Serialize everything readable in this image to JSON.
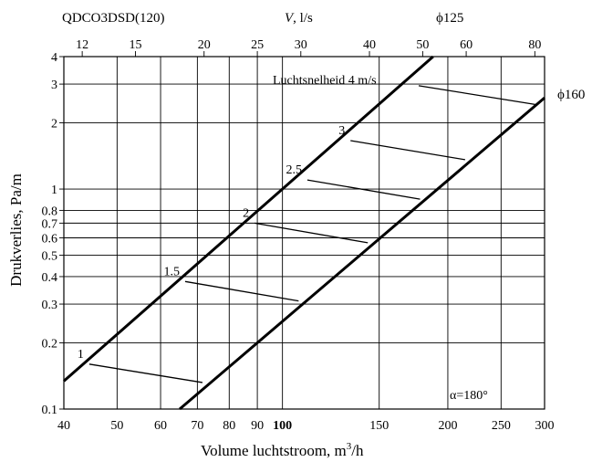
{
  "chart_data": {
    "type": "line",
    "header_left": "QDCO3DSD(120)",
    "top_axis_label_var": "V",
    "top_axis_label_unit": ", l/s",
    "xlabel": "Volume luchtstroom, m",
    "xlabel_sup": "3",
    "xlabel_tail": "/h",
    "ylabel": "Drukverlies, Pa/m",
    "x_scale": "log",
    "y_scale": "log",
    "xlim": [
      40,
      300
    ],
    "ylim": [
      0.1,
      4
    ],
    "grid": true,
    "x_ticks": [
      40,
      50,
      60,
      70,
      80,
      90,
      100,
      150,
      200,
      250,
      300
    ],
    "x_tick_labels": [
      "40",
      "50",
      "60",
      "70",
      "80",
      "90",
      "100",
      "150",
      "200",
      "250",
      "300"
    ],
    "y_ticks": [
      0.1,
      0.2,
      0.3,
      0.4,
      0.5,
      0.6,
      0.7,
      0.8,
      1,
      2,
      3,
      4
    ],
    "y_tick_labels": [
      "0.1",
      "0.2",
      "0.3",
      "0.4",
      "0.5",
      "0.6",
      "0.7",
      "0.8",
      "1",
      "2",
      "3",
      "4"
    ],
    "top_ticks": [
      12,
      15,
      20,
      25,
      30,
      40,
      50,
      60,
      80
    ],
    "top_tick_labels": [
      "12",
      "15",
      "20",
      "25",
      "30",
      "40",
      "50",
      "60",
      "80"
    ],
    "series": [
      {
        "name": "ϕ125",
        "x": [
          40,
          188
        ],
        "y": [
          0.134,
          4
        ]
      },
      {
        "name": "ϕ160",
        "x": [
          65,
          300
        ],
        "y": [
          0.1,
          2.6
        ]
      }
    ],
    "velocity_lines": [
      {
        "label": "1",
        "x": [
          44.5,
          71.5
        ],
        "y": [
          0.16,
          0.132
        ]
      },
      {
        "label": "1.5",
        "x": [
          66.5,
          107
        ],
        "y": [
          0.38,
          0.31
        ]
      },
      {
        "label": "2",
        "x": [
          89,
          143
        ],
        "y": [
          0.7,
          0.57
        ]
      },
      {
        "label": "2.5",
        "x": [
          111,
          178
        ],
        "y": [
          1.1,
          0.9
        ]
      },
      {
        "label": "3",
        "x": [
          133,
          215
        ],
        "y": [
          1.66,
          1.36
        ]
      },
      {
        "label": "4",
        "x": [
          177,
          290
        ],
        "y": [
          2.95,
          2.42
        ]
      }
    ],
    "velocity_label_text": "Luchtsnelheid 4 m/s",
    "alpha_label": "α=180°"
  }
}
